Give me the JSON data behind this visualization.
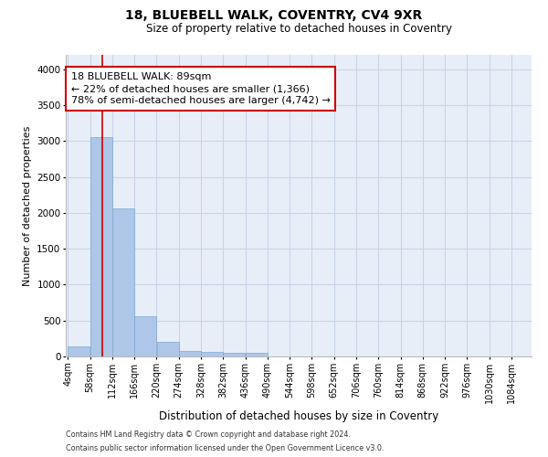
{
  "title1": "18, BLUEBELL WALK, COVENTRY, CV4 9XR",
  "title2": "Size of property relative to detached houses in Coventry",
  "xlabel": "Distribution of detached houses by size in Coventry",
  "ylabel": "Number of detached properties",
  "footnote1": "Contains HM Land Registry data © Crown copyright and database right 2024.",
  "footnote2": "Contains public sector information licensed under the Open Government Licence v3.0.",
  "property_size": 89,
  "property_label": "18 BLUEBELL WALK: 89sqm",
  "annotation_line1": "← 22% of detached houses are smaller (1,366)",
  "annotation_line2": "78% of semi-detached houses are larger (4,742) →",
  "bin_edges": [
    4,
    58,
    112,
    166,
    220,
    274,
    328,
    382,
    436,
    490,
    544,
    598,
    652,
    706,
    760,
    814,
    868,
    922,
    976,
    1030,
    1084
  ],
  "bar_heights": [
    140,
    3060,
    2060,
    560,
    200,
    80,
    60,
    45,
    45,
    0,
    0,
    0,
    0,
    0,
    0,
    0,
    0,
    0,
    0,
    0
  ],
  "bar_color": "#aec6e8",
  "bar_edge_color": "#7aaad0",
  "grid_color": "#c8d4e8",
  "bg_color": "#e8eef8",
  "vline_color": "#cc0000",
  "box_edge_color": "#cc0000",
  "ylim": [
    0,
    4200
  ],
  "yticks": [
    0,
    500,
    1000,
    1500,
    2000,
    2500,
    3000,
    3500,
    4000
  ],
  "title1_fontsize": 10,
  "title2_fontsize": 8.5,
  "ylabel_fontsize": 8,
  "xlabel_fontsize": 8.5,
  "tick_fontsize": 7,
  "annot_fontsize": 8,
  "footnote_fontsize": 5.8
}
